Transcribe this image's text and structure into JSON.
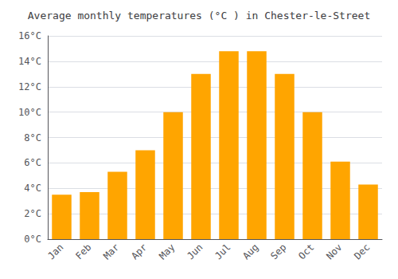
{
  "chart_data": {
    "type": "bar",
    "title": "Average monthly temperatures (°C ) in Chester-le-Street",
    "categories": [
      "Jan",
      "Feb",
      "Mar",
      "Apr",
      "May",
      "Jun",
      "Jul",
      "Aug",
      "Sep",
      "Oct",
      "Nov",
      "Dec"
    ],
    "values": [
      3.5,
      3.7,
      5.3,
      7.0,
      10.0,
      13.0,
      14.8,
      14.8,
      13.0,
      10.0,
      6.1,
      4.3
    ],
    "color": "#FFA500",
    "ylim": [
      0,
      16
    ],
    "yticks": [
      {
        "value": 0,
        "label": "0°C"
      },
      {
        "value": 2,
        "label": "2°C"
      },
      {
        "value": 4,
        "label": "4°C"
      },
      {
        "value": 6,
        "label": "6°C"
      },
      {
        "value": 8,
        "label": "8°C"
      },
      {
        "value": 10,
        "label": "10°C"
      },
      {
        "value": 12,
        "label": "12°C"
      },
      {
        "value": 14,
        "label": "14°C"
      },
      {
        "value": 16,
        "label": "16°C"
      }
    ],
    "grid": true
  }
}
